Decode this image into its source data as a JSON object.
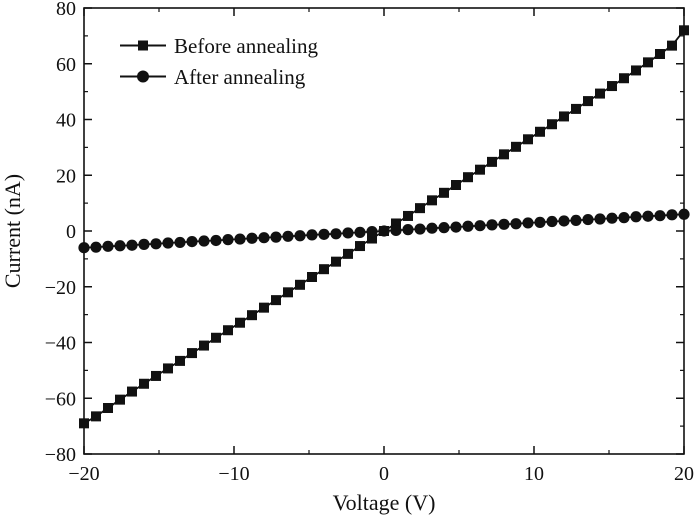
{
  "chart_data": {
    "type": "line",
    "title": "",
    "xlabel": "Voltage (V)",
    "ylabel": "Current (nA)",
    "xlim": [
      -20,
      20
    ],
    "ylim": [
      -80,
      80
    ],
    "x_ticks": [
      -20,
      -10,
      0,
      10,
      20
    ],
    "y_ticks": [
      -80,
      -60,
      -40,
      -20,
      0,
      20,
      40,
      60,
      80
    ],
    "x_tick_labels": [
      "−20",
      "−10",
      "0",
      "10",
      "20"
    ],
    "y_tick_labels": [
      "−80",
      "−60",
      "−40",
      "−20",
      "0",
      "20",
      "40",
      "60",
      "80"
    ],
    "grid": false,
    "legend_position": "top-left",
    "series": [
      {
        "name": "Before annealing",
        "marker": "square",
        "color": "#111111",
        "x": [
          -20,
          -19.2,
          -18.4,
          -17.6,
          -16.8,
          -16,
          -15.2,
          -14.4,
          -13.6,
          -12.8,
          -12,
          -11.2,
          -10.4,
          -9.6,
          -8.8,
          -8,
          -7.2,
          -6.4,
          -5.6,
          -4.8,
          -4,
          -3.2,
          -2.4,
          -1.6,
          -0.8,
          0,
          0.8,
          1.6,
          2.4,
          3.2,
          4,
          4.8,
          5.6,
          6.4,
          7.2,
          8,
          8.8,
          9.6,
          10.4,
          11.2,
          12,
          12.8,
          13.6,
          14.4,
          15.2,
          16,
          16.8,
          17.6,
          18.4,
          19.2,
          20
        ],
        "y": [
          -69,
          -66.5,
          -63.5,
          -60.5,
          -57.6,
          -54.8,
          -52,
          -49.3,
          -46.6,
          -43.8,
          -41.1,
          -38.3,
          -35.6,
          -32.9,
          -30.2,
          -27.5,
          -24.8,
          -22,
          -19.3,
          -16.5,
          -13.7,
          -11,
          -8.2,
          -5.4,
          -2.7,
          0,
          2.7,
          5.4,
          8.2,
          11,
          13.7,
          16.5,
          19.3,
          22,
          24.8,
          27.5,
          30.2,
          32.9,
          35.6,
          38.3,
          41.1,
          43.8,
          46.6,
          49.3,
          52,
          54.8,
          57.6,
          60.5,
          63.5,
          66.5,
          72
        ]
      },
      {
        "name": "After annealing",
        "marker": "circle",
        "color": "#111111",
        "x": [
          -20,
          -19.2,
          -18.4,
          -17.6,
          -16.8,
          -16,
          -15.2,
          -14.4,
          -13.6,
          -12.8,
          -12,
          -11.2,
          -10.4,
          -9.6,
          -8.8,
          -8,
          -7.2,
          -6.4,
          -5.6,
          -4.8,
          -4,
          -3.2,
          -2.4,
          -1.6,
          -0.8,
          0,
          0.8,
          1.6,
          2.4,
          3.2,
          4,
          4.8,
          5.6,
          6.4,
          7.2,
          8,
          8.8,
          9.6,
          10.4,
          11.2,
          12,
          12.8,
          13.6,
          14.4,
          15.2,
          16,
          16.8,
          17.6,
          18.4,
          19.2,
          20
        ],
        "y": [
          -6,
          -5.8,
          -5.5,
          -5.3,
          -5.1,
          -4.8,
          -4.6,
          -4.3,
          -4.1,
          -3.8,
          -3.6,
          -3.4,
          -3.1,
          -2.9,
          -2.6,
          -2.4,
          -2.2,
          -1.9,
          -1.7,
          -1.4,
          -1.2,
          -1,
          -0.7,
          -0.5,
          -0.2,
          0,
          0.2,
          0.5,
          0.7,
          1,
          1.2,
          1.4,
          1.7,
          1.9,
          2.2,
          2.4,
          2.6,
          2.9,
          3.1,
          3.4,
          3.6,
          3.8,
          4.1,
          4.3,
          4.6,
          4.8,
          5.1,
          5.3,
          5.5,
          5.8,
          6
        ]
      }
    ]
  }
}
